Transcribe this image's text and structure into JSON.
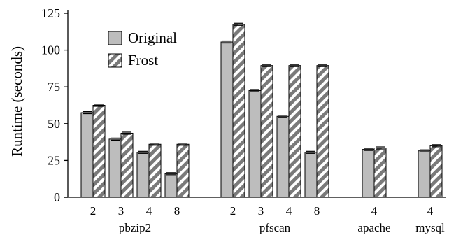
{
  "chart_data": {
    "type": "bar",
    "ylabel": "Runtime (seconds)",
    "xlabel": "",
    "ylim": [
      0,
      125
    ],
    "yticks": [
      0,
      25,
      50,
      75,
      100,
      125
    ],
    "grid": false,
    "legend_position": "top-left",
    "series": [
      {
        "name": "Original",
        "style": "solid",
        "color": "#bdbdbd"
      },
      {
        "name": "Frost",
        "style": "hatched",
        "color": "#7a7a7a"
      }
    ],
    "groups": [
      {
        "label": "pbzip2",
        "categories": [
          {
            "label": "2",
            "values": [
              57.5,
              62.5
            ]
          },
          {
            "label": "3",
            "values": [
              39.5,
              43.5
            ]
          },
          {
            "label": "4",
            "values": [
              30.5,
              36
            ]
          },
          {
            "label": "8",
            "values": [
              16,
              36
            ]
          }
        ]
      },
      {
        "label": "pfscan",
        "categories": [
          {
            "label": "2",
            "values": [
              105.5,
              117.5
            ]
          },
          {
            "label": "3",
            "values": [
              72.5,
              89.5
            ]
          },
          {
            "label": "4",
            "values": [
              55,
              89.5
            ]
          },
          {
            "label": "8",
            "values": [
              30.5,
              89.5
            ]
          }
        ]
      },
      {
        "label": "apache",
        "categories": [
          {
            "label": "4",
            "values": [
              32.5,
              33.5
            ]
          }
        ]
      },
      {
        "label": "mysql",
        "categories": [
          {
            "label": "4",
            "values": [
              31.5,
              35
            ]
          }
        ]
      }
    ]
  }
}
